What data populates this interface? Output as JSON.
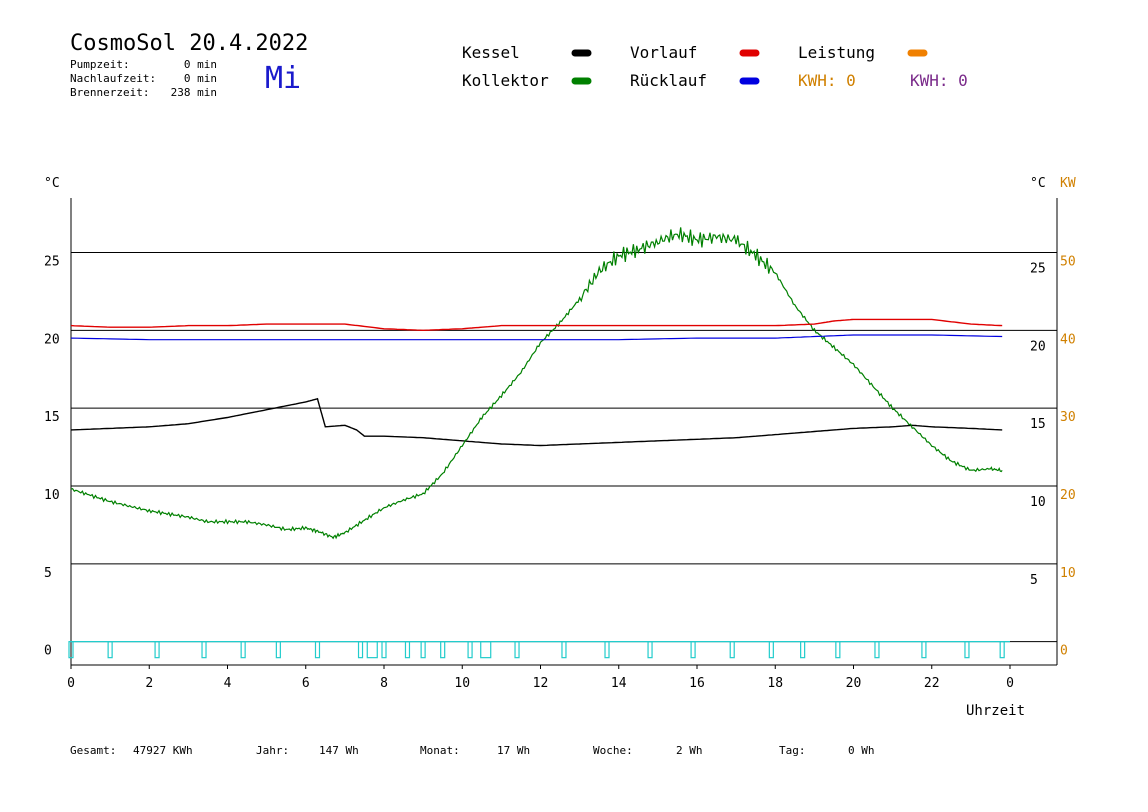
{
  "header": {
    "title": "CosmoSol 20.4.2022",
    "weekday": "Mi",
    "stats": [
      {
        "label": "Pumpzeit:",
        "value": "0 min"
      },
      {
        "label": "Nachlaufzeit:",
        "value": "0 min"
      },
      {
        "label": "Brennerzeit:",
        "value": "238 min"
      }
    ]
  },
  "legend": {
    "items": [
      {
        "label": "Kessel",
        "color": "#000000"
      },
      {
        "label": "Vorlauf",
        "color": "#e00000"
      },
      {
        "label": "Leistung",
        "color": "#f08000"
      },
      {
        "label": "Kollektor",
        "color": "#008000"
      },
      {
        "label": "Rücklauf",
        "color": "#0000e0"
      }
    ],
    "kwh": [
      {
        "label": "KWH: 0",
        "color": "#d08000"
      },
      {
        "label": "KWH: 0",
        "color": "#7a2a8a"
      }
    ]
  },
  "footer": [
    {
      "label": "Gesamt:",
      "value": "47927 KWh"
    },
    {
      "label": "Jahr:",
      "value": "147 Wh"
    },
    {
      "label": "Monat:",
      "value": "17 Wh"
    },
    {
      "label": "Woche:",
      "value": "2 Wh"
    },
    {
      "label": "Tag:",
      "value": "0 Wh"
    }
  ],
  "chart_data": {
    "type": "line",
    "xlabel": "Uhrzeit",
    "y_left_unit": "°C",
    "y_right_unit": "°C",
    "y_right2_unit": "KW",
    "xlim": [
      0,
      24
    ],
    "x_ticks": [
      "0",
      "2",
      "4",
      "6",
      "8",
      "10",
      "12",
      "14",
      "16",
      "18",
      "20",
      "22",
      "0"
    ],
    "ylim": [
      -1.5,
      28.5
    ],
    "y_ticks_left": [
      0,
      5,
      10,
      15,
      20,
      25
    ],
    "y_ticks_right": [
      5,
      10,
      15,
      20,
      25
    ],
    "y_ticks_right_kw": [
      0,
      10,
      20,
      30,
      40,
      50
    ],
    "gridlines_y": [
      0,
      5,
      10,
      15,
      20,
      25
    ],
    "series": [
      {
        "name": "Kessel",
        "color": "#000000",
        "x": [
          0,
          1,
          2,
          3,
          4,
          5,
          6,
          6.3,
          6.5,
          7,
          7.3,
          7.5,
          8,
          9,
          10,
          11,
          12,
          13,
          14,
          15,
          16,
          17,
          18,
          19,
          20,
          21,
          21.5,
          22,
          23,
          23.8
        ],
        "y": [
          13.6,
          13.7,
          13.8,
          14.0,
          14.4,
          14.9,
          15.4,
          15.6,
          13.8,
          13.9,
          13.6,
          13.2,
          13.2,
          13.1,
          12.9,
          12.7,
          12.6,
          12.7,
          12.8,
          12.9,
          13.0,
          13.1,
          13.3,
          13.5,
          13.7,
          13.8,
          13.9,
          13.8,
          13.7,
          13.6
        ]
      },
      {
        "name": "Kollektor",
        "color": "#008000",
        "x": [
          0,
          0.5,
          1,
          1.5,
          2,
          2.5,
          3,
          3.5,
          4,
          4.5,
          5,
          5.5,
          6,
          6.3,
          6.7,
          7,
          7.5,
          8,
          8.5,
          9,
          9.5,
          10,
          10.5,
          11,
          11.5,
          12,
          12.5,
          13,
          13.5,
          14,
          14.5,
          15,
          15.5,
          16,
          16.5,
          17,
          17.5,
          18,
          18.5,
          19,
          19.5,
          20,
          20.5,
          21,
          21.5,
          22,
          22.5,
          23,
          23.5,
          23.8
        ],
        "y": [
          9.8,
          9.4,
          9.0,
          8.7,
          8.4,
          8.2,
          8.0,
          7.7,
          7.7,
          7.7,
          7.5,
          7.2,
          7.3,
          7.1,
          6.7,
          7.0,
          7.8,
          8.6,
          9.1,
          9.5,
          10.8,
          12.6,
          14.4,
          15.8,
          17.3,
          19.2,
          20.5,
          22.0,
          23.8,
          24.8,
          25.2,
          25.7,
          26.2,
          25.8,
          26.0,
          25.8,
          24.8,
          23.7,
          21.6,
          20.0,
          18.9,
          17.8,
          16.4,
          15.0,
          13.8,
          12.6,
          11.6,
          11.0,
          11.1,
          11.0
        ]
      },
      {
        "name": "Vorlauf",
        "color": "#e00000",
        "x": [
          0,
          1,
          2,
          3,
          4,
          5,
          6,
          7,
          8,
          9,
          10,
          11,
          12,
          13,
          14,
          15,
          16,
          17,
          18,
          19,
          19.5,
          20,
          21,
          22,
          23,
          23.8
        ],
        "y": [
          20.3,
          20.2,
          20.2,
          20.3,
          20.3,
          20.4,
          20.4,
          20.4,
          20.1,
          20.0,
          20.1,
          20.3,
          20.3,
          20.3,
          20.3,
          20.3,
          20.3,
          20.3,
          20.3,
          20.4,
          20.6,
          20.7,
          20.7,
          20.7,
          20.4,
          20.3
        ]
      },
      {
        "name": "Rücklauf",
        "color": "#0000e0",
        "x": [
          0,
          2,
          4,
          6,
          8,
          10,
          12,
          14,
          16,
          18,
          19,
          20,
          22,
          23.8
        ],
        "y": [
          19.5,
          19.4,
          19.4,
          19.4,
          19.4,
          19.4,
          19.4,
          19.4,
          19.5,
          19.5,
          19.6,
          19.7,
          19.7,
          19.6
        ]
      }
    ]
  }
}
